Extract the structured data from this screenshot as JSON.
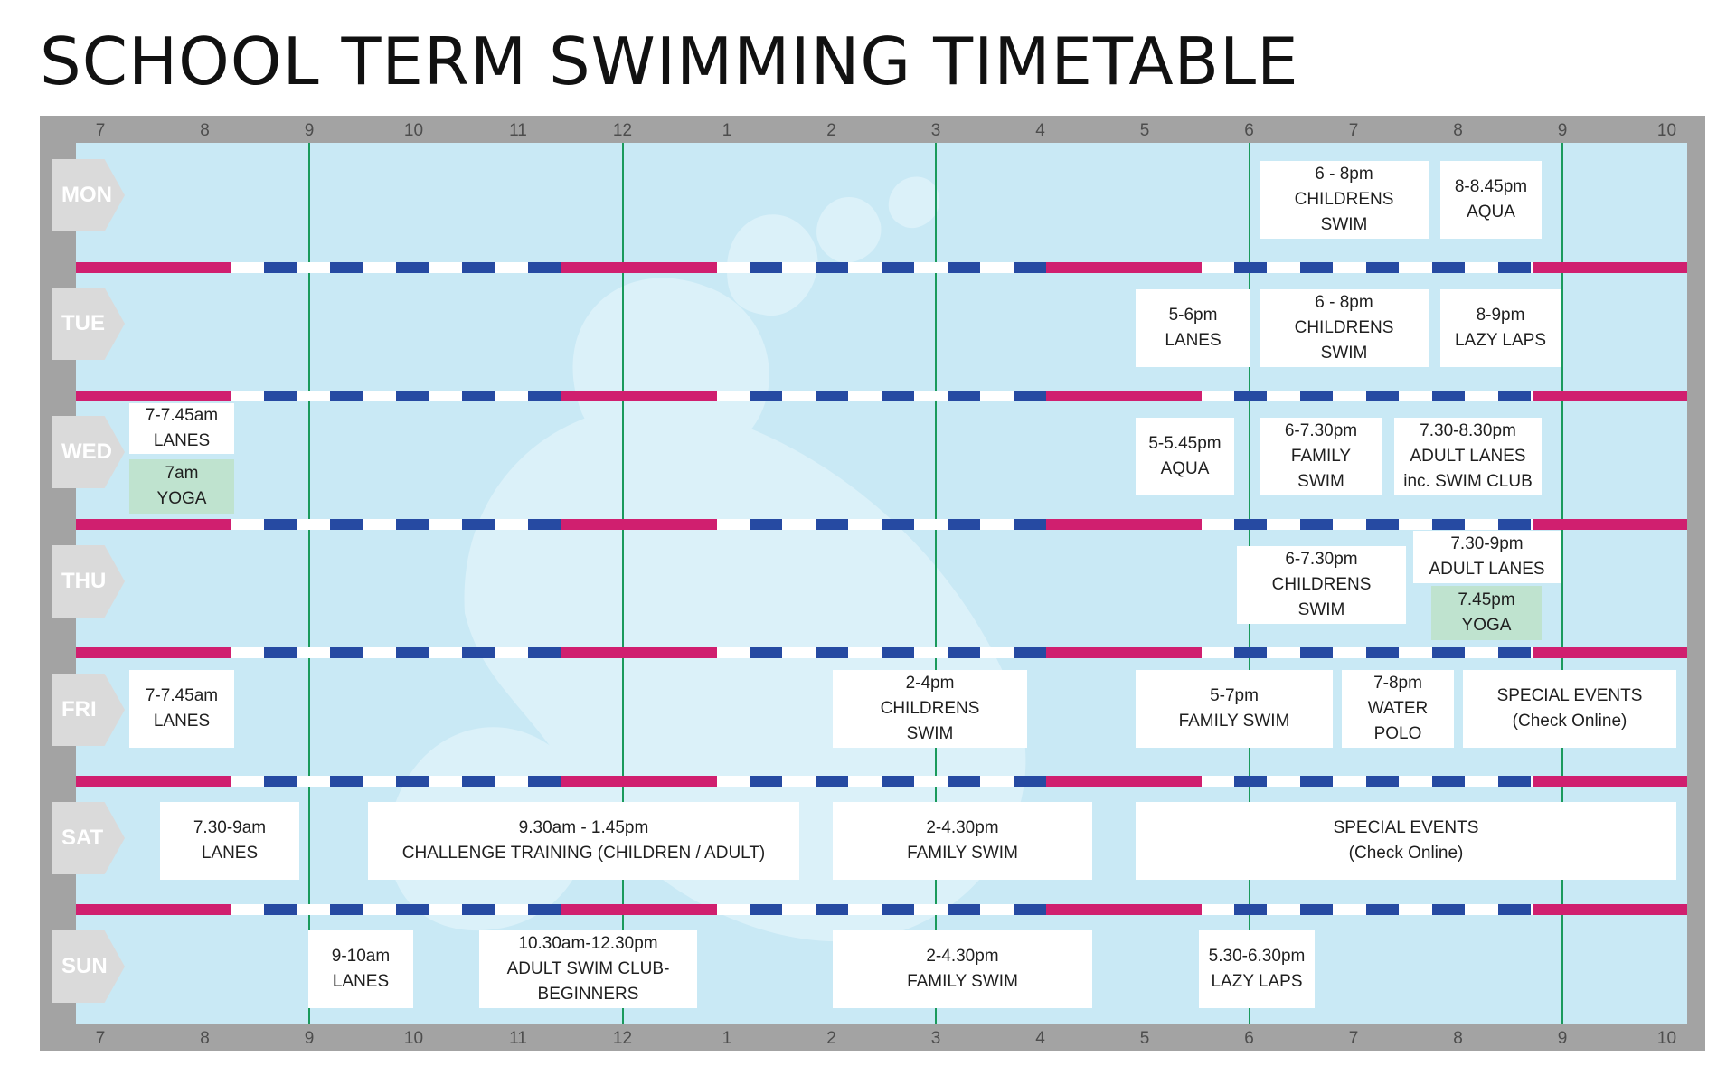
{
  "title": "SCHOOL TERM SWIMMING TIMETABLE",
  "hours": [
    "7",
    "8",
    "9",
    "10",
    "11",
    "12",
    "1",
    "2",
    "3",
    "4",
    "5",
    "6",
    "7",
    "8",
    "9",
    "10"
  ],
  "days": [
    "MON",
    "TUE",
    "WED",
    "THU",
    "FRI",
    "SAT",
    "SUN"
  ],
  "colors": {
    "frame": "#a3a3a3",
    "water": "#c9e9f5",
    "lane_red": "#d01f6f",
    "lane_blue": "#264aa2",
    "hour_line": "#1a9a5c",
    "yoga": "#bfe3cf"
  },
  "events": [
    {
      "day": "MON",
      "start": "6pm",
      "end": "8pm",
      "lines": [
        "6 - 8pm",
        "CHILDRENS",
        "SWIM"
      ]
    },
    {
      "day": "MON",
      "start": "8pm",
      "end": "8.45pm",
      "lines": [
        "8-8.45pm",
        "AQUA"
      ]
    },
    {
      "day": "TUE",
      "start": "5pm",
      "end": "6pm",
      "lines": [
        "5-6pm",
        "LANES"
      ]
    },
    {
      "day": "TUE",
      "start": "6pm",
      "end": "8pm",
      "lines": [
        "6 - 8pm",
        "CHILDRENS",
        "SWIM"
      ]
    },
    {
      "day": "TUE",
      "start": "8pm",
      "end": "9pm",
      "lines": [
        "8-9pm",
        "LAZY LAPS"
      ]
    },
    {
      "day": "WED",
      "start": "7am",
      "end": "7.45am",
      "lines": [
        "7-7.45am",
        "LANES"
      ]
    },
    {
      "day": "WED",
      "start": "7am",
      "end": "",
      "type": "yoga",
      "lines": [
        "7am",
        "YOGA"
      ]
    },
    {
      "day": "WED",
      "start": "5pm",
      "end": "5.45pm",
      "lines": [
        "5-5.45pm",
        "AQUA"
      ]
    },
    {
      "day": "WED",
      "start": "6pm",
      "end": "7.30pm",
      "lines": [
        "6-7.30pm",
        "FAMILY",
        "SWIM"
      ]
    },
    {
      "day": "WED",
      "start": "7.30pm",
      "end": "8.30pm",
      "lines": [
        "7.30-8.30pm",
        "ADULT LANES",
        "inc. SWIM CLUB"
      ]
    },
    {
      "day": "THU",
      "start": "6pm",
      "end": "7.30pm",
      "lines": [
        "6-7.30pm",
        "CHILDRENS",
        "SWIM"
      ]
    },
    {
      "day": "THU",
      "start": "7.30pm",
      "end": "9pm",
      "lines": [
        "7.30-9pm",
        "ADULT LANES"
      ]
    },
    {
      "day": "THU",
      "start": "7.45pm",
      "end": "",
      "type": "yoga",
      "lines": [
        "7.45pm",
        "YOGA"
      ]
    },
    {
      "day": "FRI",
      "start": "7am",
      "end": "7.45am",
      "lines": [
        "7-7.45am",
        "LANES"
      ]
    },
    {
      "day": "FRI",
      "start": "2pm",
      "end": "4pm",
      "lines": [
        "2-4pm",
        "CHILDRENS",
        "SWIM"
      ]
    },
    {
      "day": "FRI",
      "start": "5pm",
      "end": "7pm",
      "lines": [
        "5-7pm",
        "FAMILY SWIM"
      ]
    },
    {
      "day": "FRI",
      "start": "7pm",
      "end": "8pm",
      "lines": [
        "7-8pm",
        "WATER POLO"
      ]
    },
    {
      "day": "FRI",
      "start": "",
      "end": "",
      "lines": [
        "SPECIAL EVENTS",
        "(Check Online)"
      ]
    },
    {
      "day": "SAT",
      "start": "7.30am",
      "end": "9am",
      "lines": [
        "7.30-9am",
        "LANES"
      ]
    },
    {
      "day": "SAT",
      "start": "9.30am",
      "end": "1.45pm",
      "lines": [
        "9.30am - 1.45pm",
        "CHALLENGE TRAINING (CHILDREN / ADULT)"
      ]
    },
    {
      "day": "SAT",
      "start": "2pm",
      "end": "4.30pm",
      "lines": [
        "2-4.30pm",
        "FAMILY SWIM"
      ]
    },
    {
      "day": "SAT",
      "start": "",
      "end": "",
      "lines": [
        "SPECIAL EVENTS",
        "(Check Online)"
      ]
    },
    {
      "day": "SUN",
      "start": "9am",
      "end": "10am",
      "lines": [
        "9-10am",
        "LANES"
      ]
    },
    {
      "day": "SUN",
      "start": "10.30am",
      "end": "12.30pm",
      "lines": [
        "10.30am-12.30pm",
        "ADULT SWIM CLUB-",
        "BEGINNERS"
      ]
    },
    {
      "day": "SUN",
      "start": "2pm",
      "end": "4.30pm",
      "lines": [
        "2-4.30pm",
        "FAMILY SWIM"
      ]
    },
    {
      "day": "SUN",
      "start": "5.30pm",
      "end": "6.30pm",
      "lines": [
        "5.30-6.30pm",
        "LAZY LAPS"
      ]
    }
  ]
}
